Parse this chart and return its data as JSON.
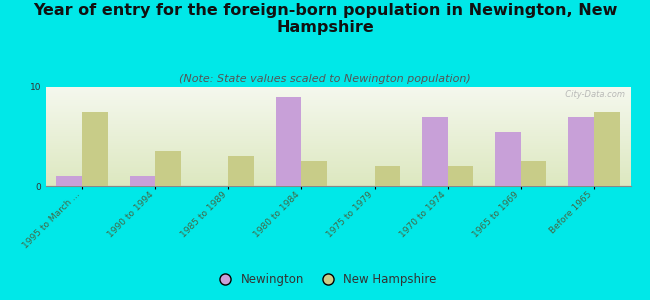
{
  "title": "Year of entry for the foreign-born population in Newington, New\nHampshire",
  "subtitle": "(Note: State values scaled to Newington population)",
  "categories": [
    "1995 to March ...",
    "1990 to 1994",
    "1985 to 1989",
    "1980 to 1984",
    "1975 to 1979",
    "1970 to 1974",
    "1965 to 1969",
    "Before 1965"
  ],
  "newington_values": [
    1.0,
    1.0,
    0.0,
    9.0,
    0.0,
    7.0,
    5.5,
    7.0
  ],
  "nh_values": [
    7.5,
    3.5,
    3.0,
    2.5,
    2.0,
    2.0,
    2.5,
    7.5
  ],
  "newington_color": "#c8a0d8",
  "nh_color": "#c8cc88",
  "background_color": "#00e8e8",
  "plot_bg_top": "#f5f8ee",
  "plot_bg_bottom": "#dde8c0",
  "ylim_min": 0,
  "ylim_max": 10,
  "ytick_val": 10,
  "bar_width": 0.35,
  "title_fontsize": 11.5,
  "subtitle_fontsize": 8,
  "legend_fontsize": 8.5,
  "tick_fontsize": 6.5,
  "watermark": "  City-Data.com"
}
